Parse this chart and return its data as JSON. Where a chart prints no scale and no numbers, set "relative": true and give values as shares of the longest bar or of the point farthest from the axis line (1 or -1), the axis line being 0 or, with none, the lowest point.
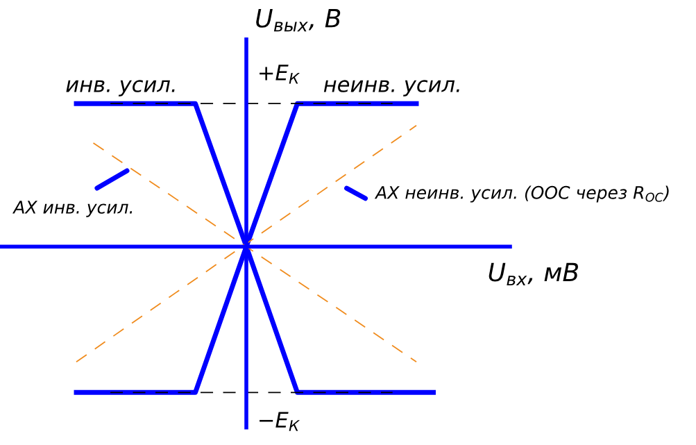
{
  "chart_data": {
    "type": "line",
    "relative": true,
    "xlabel": "U$_{вх}$, мВ",
    "ylabel": "U$_{вых}$, В",
    "legend": false,
    "marker": "none",
    "categories": [
      null,
      null,
      null,
      null,
      null,
      null,
      null,
      null,
      null,
      null,
      null,
      null,
      null,
      null,
      null,
      null,
      null,
      null,
      null,
      null,
      null,
      null
    ],
    "series": [
      {
        "color": "#0000ff",
        "line_style": "solid",
        "values": [
          0.98,
          null,
          null,
          null,
          null,
          null,
          null,
          0.98,
          null,
          null,
          0,
          null,
          null,
          -1,
          null,
          null,
          null,
          null,
          null,
          null,
          null,
          -1
        ]
      },
      {
        "color": "#0000ff",
        "line_style": "solid",
        "values": [
          -1,
          null,
          null,
          null,
          null,
          null,
          null,
          -1,
          null,
          null,
          0,
          null,
          null,
          0.98,
          null,
          null,
          null,
          null,
          null,
          null,
          0.98,
          null
        ]
      },
      {
        "color": "#f08c1e",
        "line_style": "dashed",
        "values": [
          null,
          0.71,
          null,
          null,
          null,
          null,
          null,
          null,
          null,
          null,
          null,
          null,
          null,
          null,
          null,
          null,
          null,
          null,
          null,
          null,
          -0.79,
          null
        ]
      },
      {
        "color": "#f08c1e",
        "line_style": "dashed",
        "values": [
          -0.79,
          null,
          null,
          null,
          null,
          null,
          null,
          null,
          null,
          null,
          null,
          null,
          null,
          null,
          null,
          null,
          null,
          null,
          null,
          null,
          0.83,
          null
        ]
      }
    ],
    "annotations": [
      "инв. усил.",
      "неинв. усил.",
      "АХ инв. усил.",
      "АХ неинв. усил. (ООС через R$_{ОС}$)"
    ],
    "ref_lines": [
      {
        "axis": "y",
        "value": 0,
        "color": "#0000ff",
        "line_style": "solid"
      },
      {
        "axis": "y",
        "value": 0.98,
        "label": "+E$_{К}$",
        "color": "#000000",
        "line_style": "dashed"
      },
      {
        "axis": "y",
        "value": -1,
        "label": "−E$_{К}$",
        "color": "#000000",
        "line_style": "dashed"
      }
    ]
  }
}
